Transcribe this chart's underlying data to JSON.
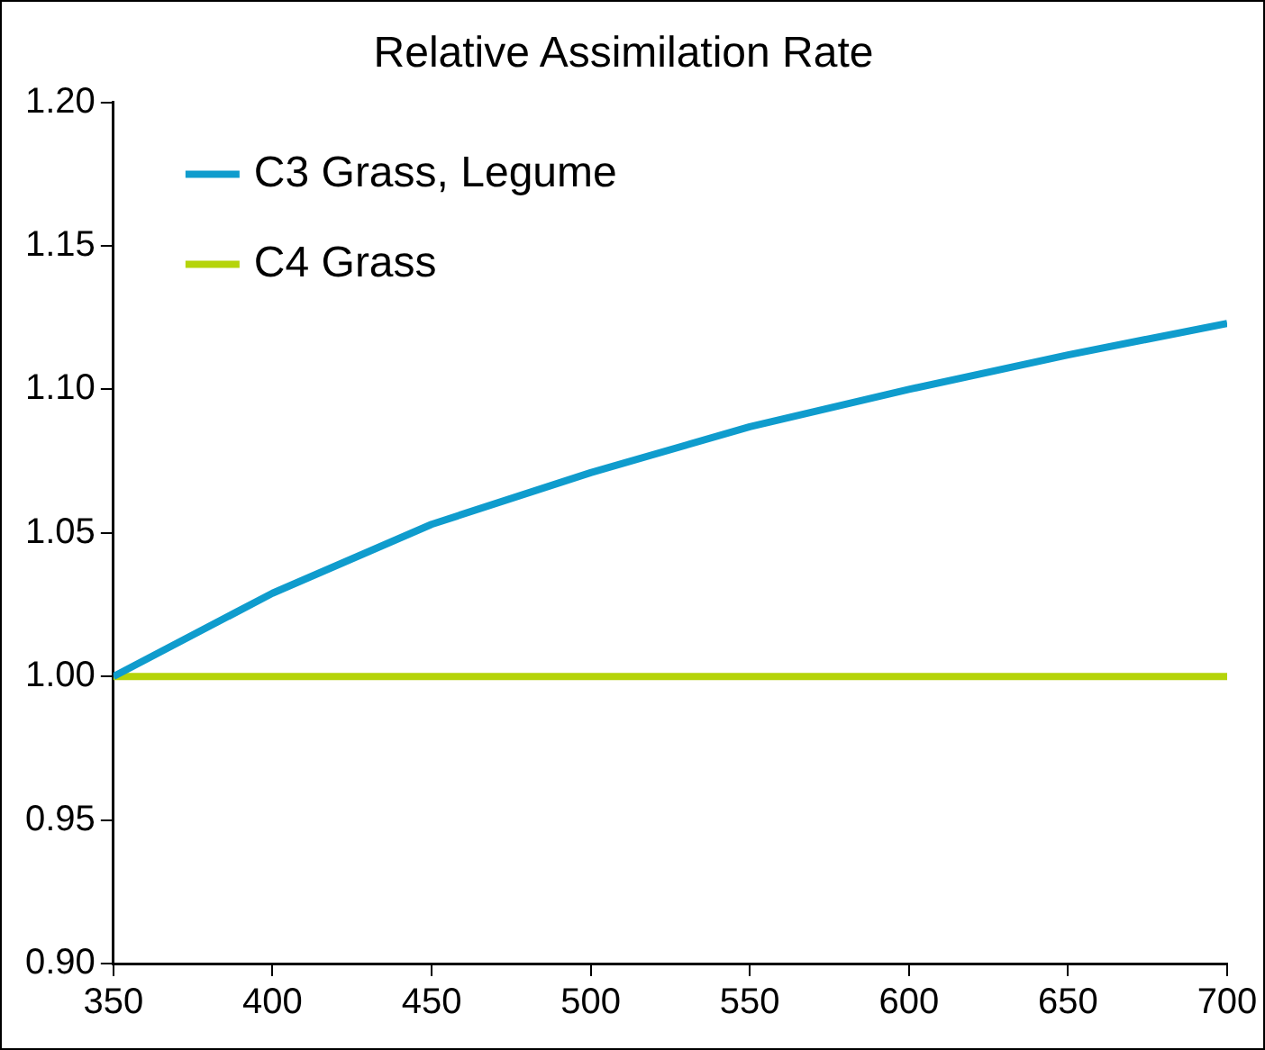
{
  "chart_data": {
    "type": "line",
    "title": "Relative Assimilation Rate",
    "x": [
      350,
      400,
      450,
      500,
      550,
      600,
      650,
      700
    ],
    "series": [
      {
        "name": "C3 Grass, Legume",
        "color": "#0f9ccd",
        "values": [
          1.0,
          1.029,
          1.053,
          1.071,
          1.087,
          1.1,
          1.112,
          1.123
        ]
      },
      {
        "name": "C4 Grass",
        "color": "#b5d40a",
        "values": [
          1.0,
          1.0,
          1.0,
          1.0,
          1.0,
          1.0,
          1.0,
          1.0
        ]
      }
    ],
    "xlim": [
      350,
      700
    ],
    "xticks": [
      350,
      400,
      450,
      500,
      550,
      600,
      650,
      700
    ],
    "ylim": [
      0.9,
      1.2
    ],
    "yticks": [
      {
        "value": 0.9,
        "label": "0.90"
      },
      0.95,
      {
        "value": 1.0,
        "label": "1.00"
      },
      1.05,
      {
        "value": 1.1,
        "label": "1.10"
      },
      1.15,
      {
        "value": 1.2,
        "label": "1.20"
      }
    ],
    "grid": false,
    "legend": "top left",
    "marker": "none",
    "line_style": "solid"
  }
}
